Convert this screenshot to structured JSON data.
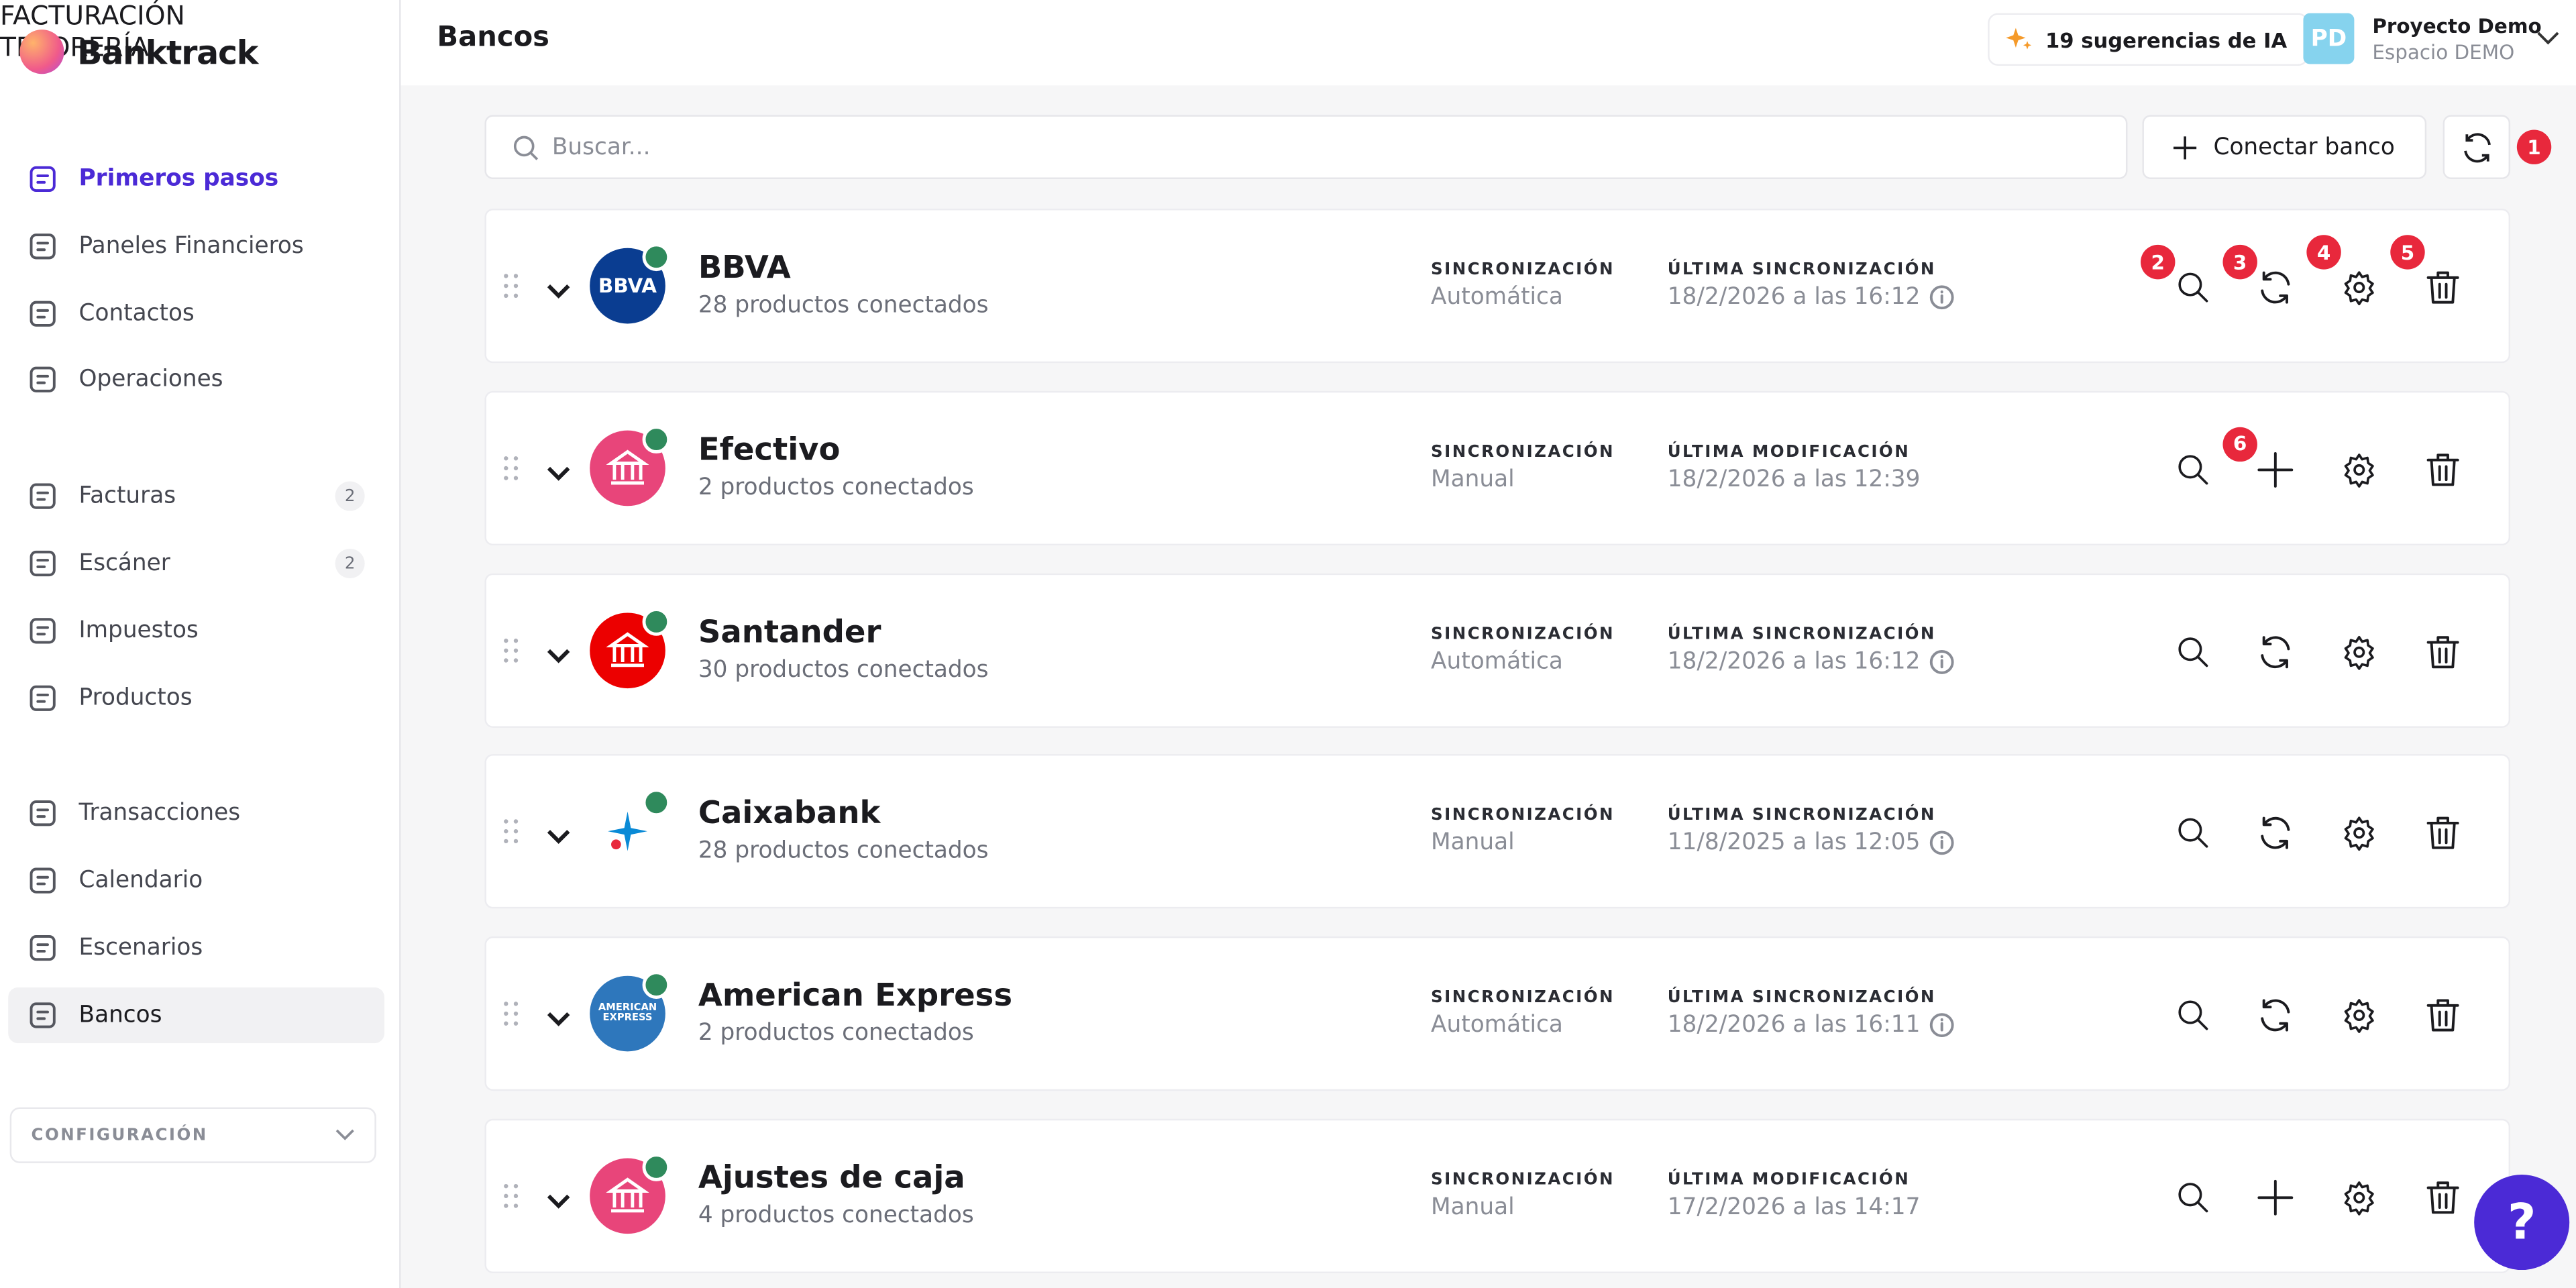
{
  "brand": "Banktrack",
  "sidebar": {
    "groups": [
      {
        "items": [
          {
            "label": "Primeros pasos",
            "active": true
          },
          {
            "label": "Paneles Financieros"
          },
          {
            "label": "Contactos"
          },
          {
            "label": "Operaciones"
          }
        ]
      },
      {
        "title": "FACTURACIÓN",
        "items": [
          {
            "label": "Facturas",
            "count": 2
          },
          {
            "label": "Escáner",
            "count": 2
          },
          {
            "label": "Impuestos"
          },
          {
            "label": "Productos"
          }
        ]
      },
      {
        "title": "TESORERÍA",
        "items": [
          {
            "label": "Transacciones"
          },
          {
            "label": "Calendario"
          },
          {
            "label": "Escenarios"
          },
          {
            "label": "Bancos",
            "selected": true
          }
        ]
      }
    ],
    "settings": "CONFIGURACIÓN"
  },
  "header": {
    "title": "Bancos",
    "ai_suggestions": "19 sugerencias de IA",
    "user": {
      "initials": "PD",
      "name": "Proyecto Demo",
      "workspace": "Espacio DEMO"
    }
  },
  "toolbar": {
    "search_placeholder": "Buscar...",
    "connect_button": "Conectar banco",
    "refresh_badge": 1
  },
  "banks": [
    {
      "name": "BBVA",
      "products": "28 productos conectados",
      "logo_text": "BBVA",
      "logo_color": "#0a3d91",
      "sync_label": "SINCRONIZACIÓN",
      "sync_value": "Automática",
      "last_label": "ÚLTIMA SINCRONIZACIÓN",
      "last_value": "18/2/2026 a las 16:12",
      "info": true,
      "second_action": "sync",
      "badges": [
        2,
        3,
        4,
        5
      ]
    },
    {
      "name": "Efectivo",
      "products": "2 productos conectados",
      "logo_color": "#e8457a",
      "sync_label": "SINCRONIZACIÓN",
      "sync_value": "Manual",
      "last_label": "ÚLTIMA MODIFICACIÓN",
      "last_value": "18/2/2026 a las 12:39",
      "info": false,
      "second_action": "add",
      "badges": [
        null,
        6,
        null,
        null
      ]
    },
    {
      "name": "Santander",
      "products": "30 productos conectados",
      "logo_color": "#ec0000",
      "sync_label": "SINCRONIZACIÓN",
      "sync_value": "Automática",
      "last_label": "ÚLTIMA SINCRONIZACIÓN",
      "last_value": "18/2/2026 a las 16:12",
      "info": true,
      "second_action": "sync"
    },
    {
      "name": "Caixabank",
      "products": "28 productos conectados",
      "logo_color": "#ffffff",
      "sync_label": "SINCRONIZACIÓN",
      "sync_value": "Manual",
      "last_label": "ÚLTIMA SINCRONIZACIÓN",
      "last_value": "11/8/2025 a las 12:05",
      "info": true,
      "second_action": "sync"
    },
    {
      "name": "American Express",
      "products": "2 productos conectados",
      "logo_text": "AMERICAN EXPRESS",
      "logo_color": "#2e77bc",
      "sync_label": "SINCRONIZACIÓN",
      "sync_value": "Automática",
      "last_label": "ÚLTIMA SINCRONIZACIÓN",
      "last_value": "18/2/2026 a las 16:11",
      "info": true,
      "second_action": "sync"
    },
    {
      "name": "Ajustes de caja",
      "products": "4 productos conectados",
      "logo_color": "#e8457a",
      "sync_label": "SINCRONIZACIÓN",
      "sync_value": "Manual",
      "last_label": "ÚLTIMA MODIFICACIÓN",
      "last_value": "17/2/2026 a las 14:17",
      "info": false,
      "second_action": "add"
    }
  ],
  "help": "?"
}
